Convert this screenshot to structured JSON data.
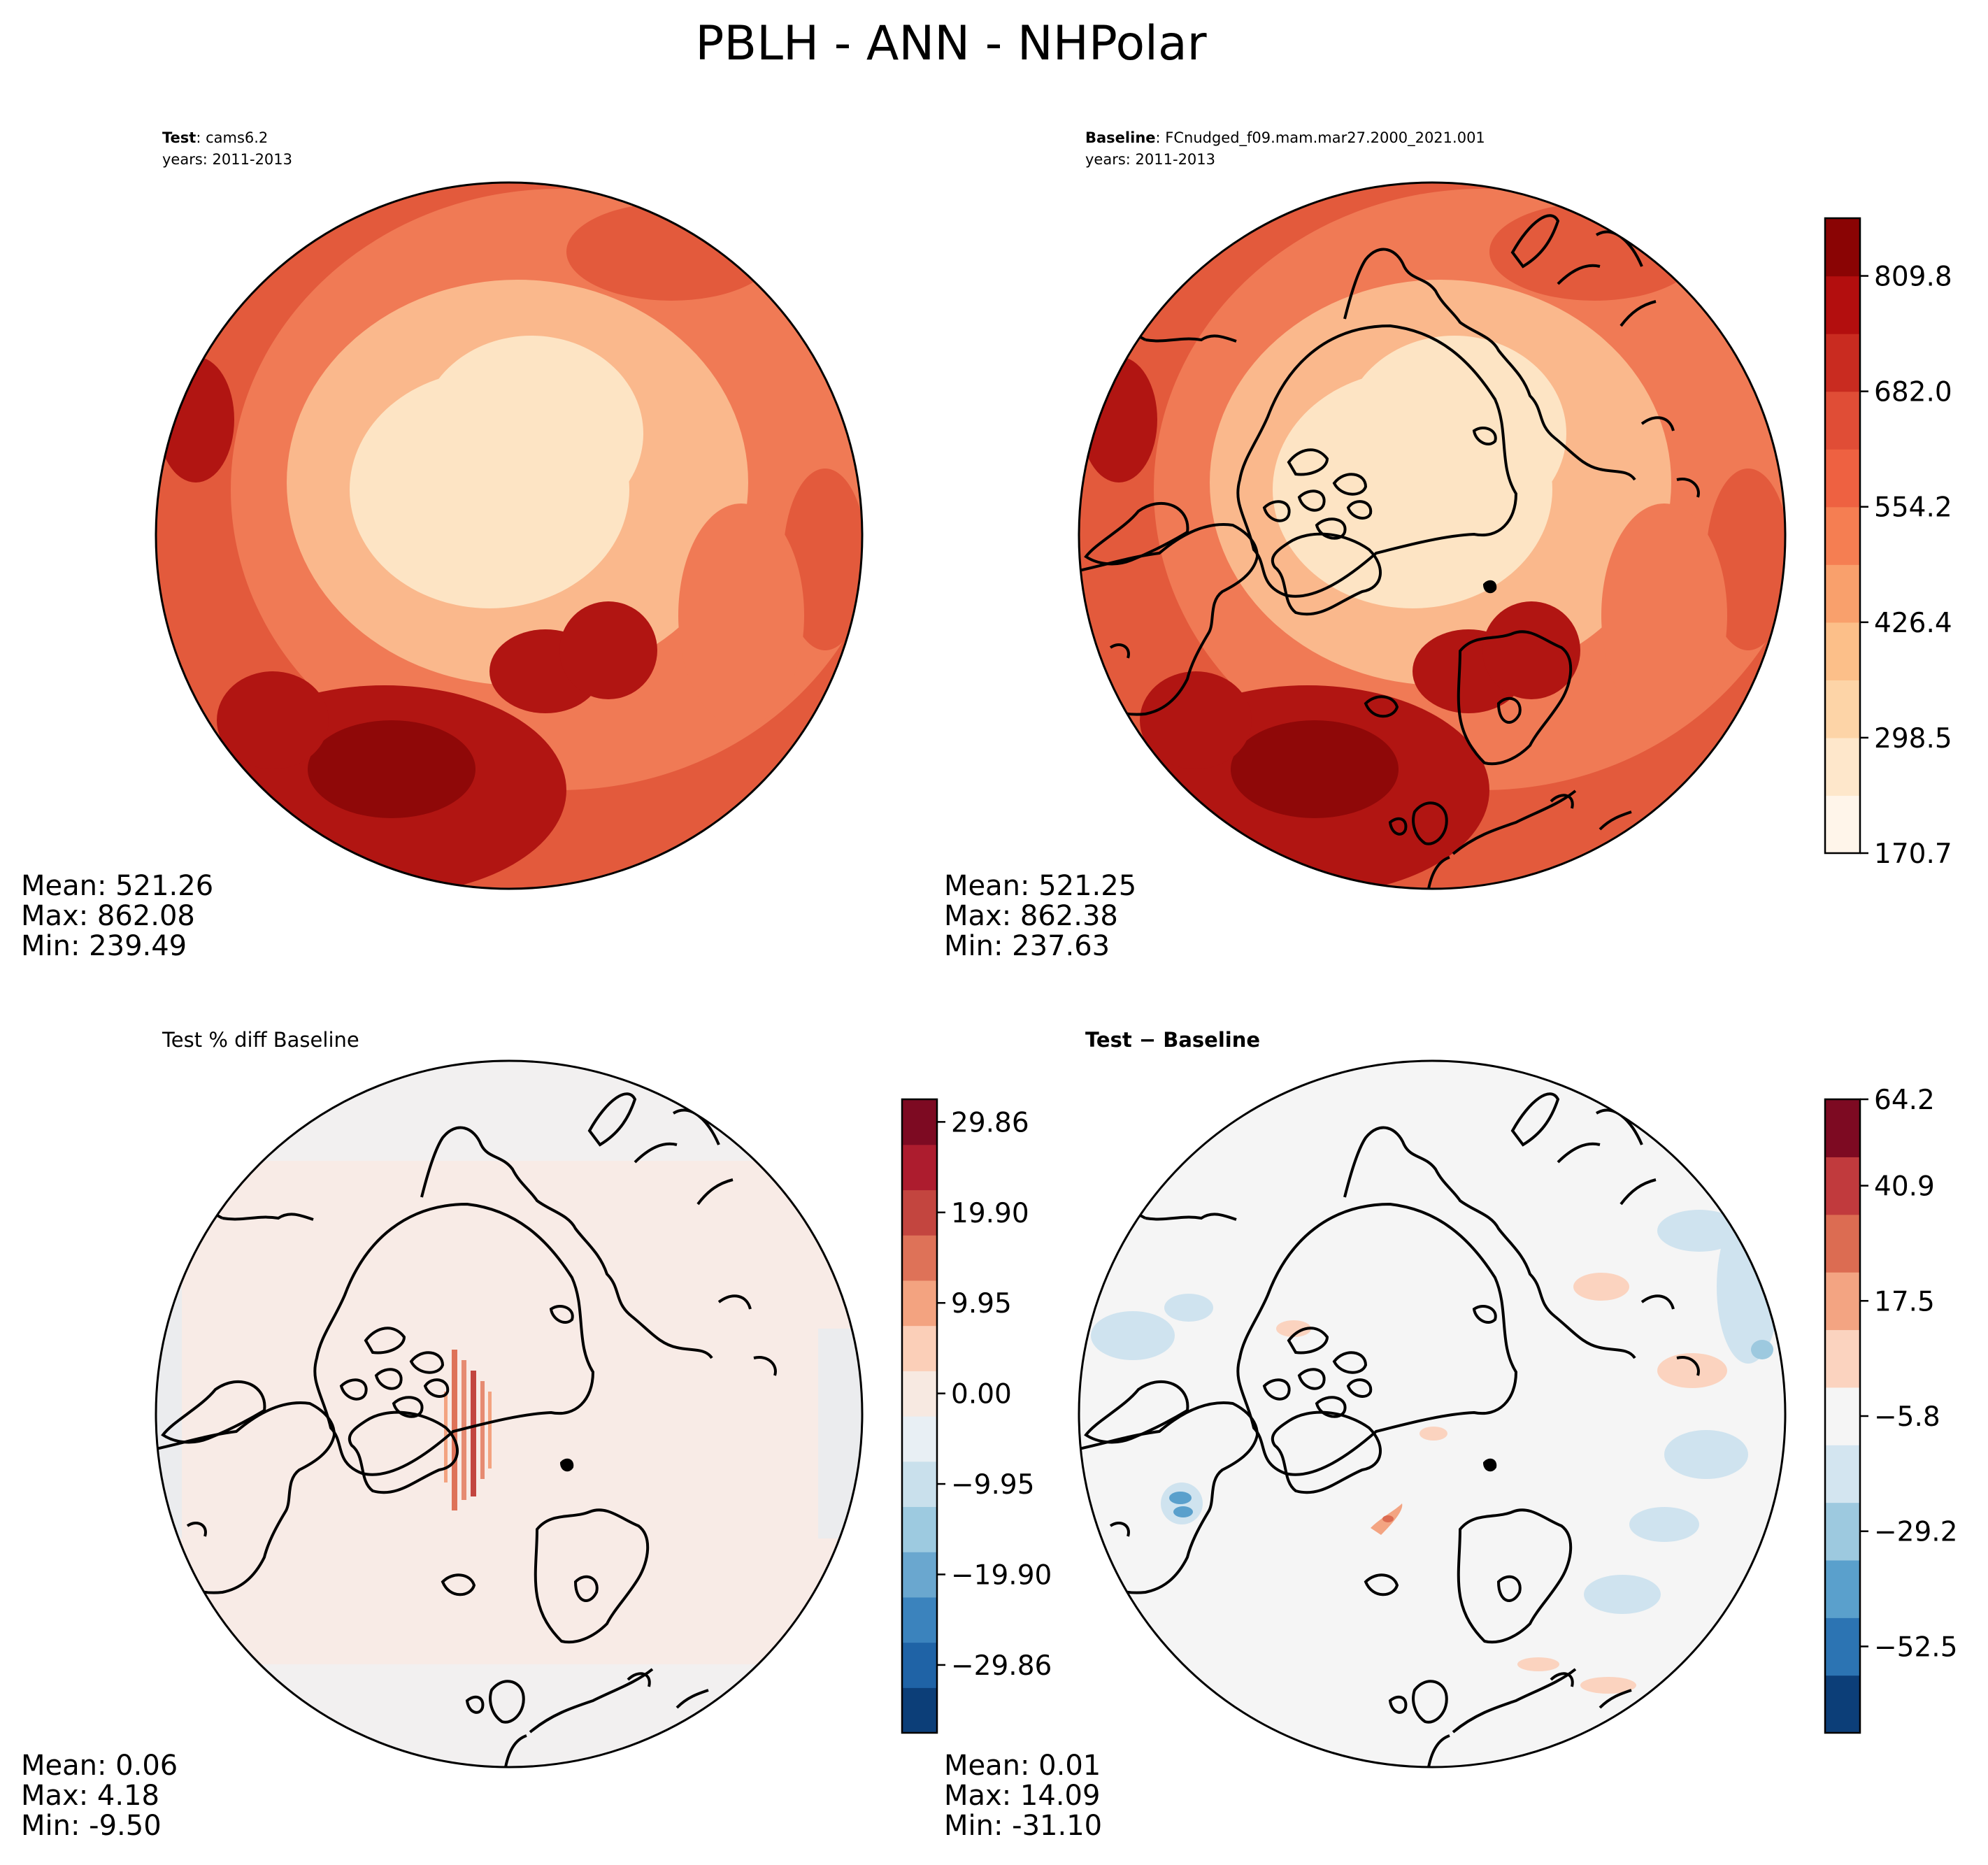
{
  "figure": {
    "title": "PBLH - ANN - NHPolar"
  },
  "panels": {
    "test": {
      "label_bold": "Test",
      "label_rest": ": cams6.2",
      "years": "years: 2011-2013",
      "stats": {
        "mean": "Mean: 521.26",
        "max": "Max: 862.08",
        "min": "Min: 239.49"
      }
    },
    "baseline": {
      "label_bold": "Baseline",
      "label_rest": ": FCnudged_f09.mam.mar27.2000_2021.001",
      "years": "years: 2011-2013",
      "stats": {
        "mean": "Mean: 521.25",
        "max": "Max: 862.38",
        "min": "Min: 237.63"
      }
    },
    "pctdiff": {
      "title": "Test % diff Baseline",
      "stats": {
        "mean": "Mean:  0.06",
        "max": "Max:  4.18",
        "min": "Min: -9.50"
      }
    },
    "diff": {
      "title": "Test − Baseline",
      "stats": {
        "mean": "Mean:  0.01",
        "max": "Max: 14.09",
        "min": "Min: -31.10"
      }
    }
  },
  "colorbars": {
    "main": {
      "colormap": "Reds",
      "colors": [
        "#fff5ea",
        "#fee7cb",
        "#fdd4a7",
        "#fcbf89",
        "#f9a06c",
        "#f57e52",
        "#ee6141",
        "#e04d36",
        "#c92b20",
        "#b30e0e",
        "#8a0404"
      ],
      "ticks": [
        "170.7",
        "298.5",
        "426.4",
        "554.2",
        "682.0",
        "809.8"
      ]
    },
    "pctdiff": {
      "colormap": "RdBu_r",
      "colors": [
        "#0c3e78",
        "#1f63a6",
        "#3b83bd",
        "#6aa7cf",
        "#9dcae0",
        "#c9e0ec",
        "#e8eff4",
        "#f7e9e1",
        "#fbcfb8",
        "#f3a380",
        "#de7258",
        "#c3453f",
        "#ad1c2e",
        "#7d0a22"
      ],
      "ticks": [
        "−29.86",
        "−19.90",
        "−9.95",
        "0.00",
        "9.95",
        "19.90",
        "29.86"
      ]
    },
    "diff": {
      "colormap": "RdBu_r",
      "colors": [
        "#0c3e78",
        "#2c74b3",
        "#5aa0cc",
        "#9dc9df",
        "#d3e5f0",
        "#f5f5f5",
        "#fbd3bf",
        "#f3a482",
        "#dc6c52",
        "#c13a3d",
        "#7d0a22"
      ],
      "ticks": [
        "−52.5",
        "−29.2",
        "−5.8",
        "17.5",
        "40.9",
        "64.2"
      ]
    }
  },
  "map_fills": {
    "main_outer": "#e35a3c",
    "main_ring": "#f07a55",
    "main_mid": "#fab88c",
    "main_inner": "#fde4c4",
    "main_hot": "#b11512",
    "main_hot_core": "#8f0808",
    "pct_base": "#f8ebe6",
    "diff_base": "#f5f5f5",
    "diff_blue": "#cfe3ef",
    "diff_orange": "#fbd3bf",
    "coast": "#000000"
  }
}
